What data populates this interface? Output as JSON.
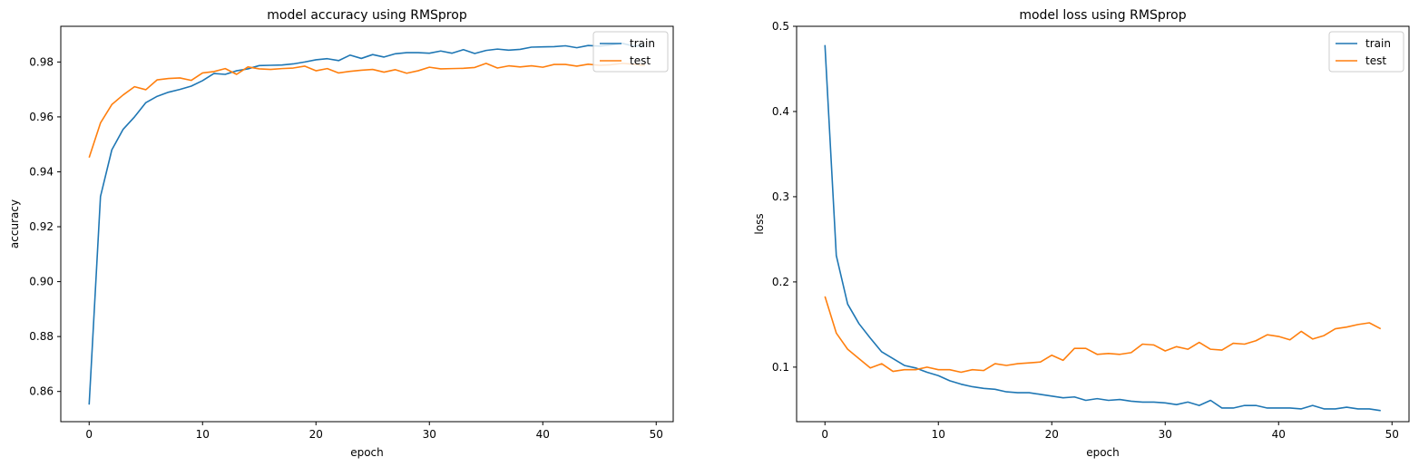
{
  "chart_data": [
    {
      "type": "line",
      "title": "model accuracy using RMSprop",
      "xlabel": "epoch",
      "ylabel": "accuracy",
      "xlim": [
        -2.5,
        51.5
      ],
      "ylim": [
        0.849,
        0.993
      ],
      "xticks": [
        0,
        10,
        20,
        30,
        40,
        50
      ],
      "xtick_labels": [
        "0",
        "10",
        "20",
        "30",
        "40",
        "50"
      ],
      "yticks": [
        0.86,
        0.88,
        0.9,
        0.92,
        0.94,
        0.96,
        0.98
      ],
      "ytick_labels": [
        "0.86",
        "0.88",
        "0.90",
        "0.92",
        "0.94",
        "0.96",
        "0.98"
      ],
      "legend": "upper right",
      "series": [
        {
          "name": "train",
          "color": "#1f77b4",
          "values": [
            0.8552,
            0.931,
            0.948,
            0.9555,
            0.96,
            0.9652,
            0.9675,
            0.969,
            0.97,
            0.9712,
            0.9732,
            0.9758,
            0.9755,
            0.9768,
            0.9775,
            0.9787,
            0.9788,
            0.9789,
            0.9793,
            0.98,
            0.9808,
            0.9812,
            0.9805,
            0.9825,
            0.9813,
            0.9827,
            0.9818,
            0.983,
            0.9834,
            0.9834,
            0.9832,
            0.984,
            0.9832,
            0.9845,
            0.9831,
            0.9842,
            0.9847,
            0.9843,
            0.9846,
            0.9854,
            0.9855,
            0.9856,
            0.9859,
            0.9852,
            0.986,
            0.9858,
            0.9862,
            0.9868,
            0.9858,
            0.986
          ]
        },
        {
          "name": "test",
          "color": "#ff7f0e",
          "values": [
            0.9452,
            0.9578,
            0.9645,
            0.968,
            0.971,
            0.9699,
            0.9735,
            0.974,
            0.9742,
            0.9733,
            0.976,
            0.9765,
            0.9776,
            0.9755,
            0.9782,
            0.9775,
            0.9773,
            0.9776,
            0.9778,
            0.9785,
            0.9768,
            0.9776,
            0.976,
            0.9766,
            0.977,
            0.9773,
            0.9763,
            0.9772,
            0.9759,
            0.9768,
            0.9781,
            0.9775,
            0.9776,
            0.9777,
            0.978,
            0.9795,
            0.9778,
            0.9786,
            0.9782,
            0.9786,
            0.9781,
            0.9791,
            0.9791,
            0.9785,
            0.9792,
            0.9788,
            0.979,
            0.9795,
            0.9792,
            0.9787
          ]
        }
      ]
    },
    {
      "type": "line",
      "title": "model loss using RMSprop",
      "xlabel": "epoch",
      "ylabel": "loss",
      "xlim": [
        -2.5,
        51.5
      ],
      "ylim": [
        0.036,
        0.5
      ],
      "xticks": [
        0,
        10,
        20,
        30,
        40,
        50
      ],
      "xtick_labels": [
        "0",
        "10",
        "20",
        "30",
        "40",
        "50"
      ],
      "yticks": [
        0.1,
        0.2,
        0.3,
        0.4,
        0.5
      ],
      "ytick_labels": [
        "0.1",
        "0.2",
        "0.3",
        "0.4",
        "0.5"
      ],
      "legend": "upper right",
      "series": [
        {
          "name": "train",
          "color": "#1f77b4",
          "values": [
            0.478,
            0.231,
            0.174,
            0.151,
            0.134,
            0.118,
            0.11,
            0.102,
            0.099,
            0.094,
            0.09,
            0.084,
            0.08,
            0.077,
            0.075,
            0.074,
            0.071,
            0.07,
            0.07,
            0.068,
            0.066,
            0.064,
            0.065,
            0.061,
            0.063,
            0.061,
            0.062,
            0.06,
            0.059,
            0.059,
            0.058,
            0.056,
            0.059,
            0.055,
            0.061,
            0.052,
            0.052,
            0.055,
            0.055,
            0.052,
            0.052,
            0.052,
            0.051,
            0.055,
            0.051,
            0.051,
            0.053,
            0.051,
            0.051,
            0.049
          ]
        },
        {
          "name": "test",
          "color": "#ff7f0e",
          "values": [
            0.183,
            0.14,
            0.121,
            0.11,
            0.099,
            0.104,
            0.095,
            0.097,
            0.097,
            0.1,
            0.097,
            0.097,
            0.094,
            0.097,
            0.096,
            0.104,
            0.102,
            0.104,
            0.105,
            0.106,
            0.114,
            0.108,
            0.122,
            0.122,
            0.115,
            0.116,
            0.115,
            0.117,
            0.127,
            0.126,
            0.119,
            0.124,
            0.121,
            0.129,
            0.121,
            0.12,
            0.128,
            0.127,
            0.131,
            0.138,
            0.136,
            0.132,
            0.142,
            0.133,
            0.137,
            0.145,
            0.147,
            0.15,
            0.152,
            0.145
          ]
        }
      ]
    }
  ]
}
